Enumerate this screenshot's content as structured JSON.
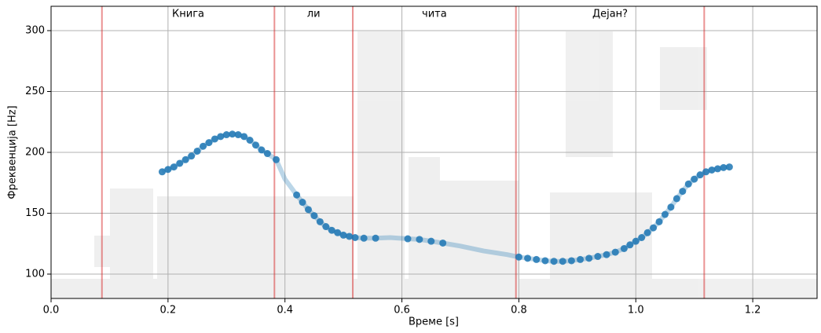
{
  "chart_data": {
    "type": "pitch",
    "xlabel": "Време [s]",
    "ylabel": "Фреквенција [Hz]",
    "xlim": [
      0,
      1.31
    ],
    "ylim": [
      80,
      320
    ],
    "xticks": [
      {
        "value": 0,
        "label": "0.0"
      },
      0.2,
      0.4,
      0.6,
      0.8,
      {
        "value": 1,
        "label": "1.0"
      },
      1.2
    ],
    "yticks": [
      100,
      150,
      200,
      250,
      300
    ],
    "grid": true,
    "boundaries": [
      0.087,
      0.382,
      0.516,
      0.795,
      1.117
    ],
    "boundary_color": "#d62728",
    "words": [
      "Книга",
      "ли",
      "чита",
      "Дејан?"
    ],
    "series": [
      {
        "color": "#1f77b4",
        "x": [
          0.19,
          0.2,
          0.21,
          0.22,
          0.23,
          0.24,
          0.25,
          0.26,
          0.27,
          0.28,
          0.29,
          0.3,
          0.31,
          0.32,
          0.33,
          0.34,
          0.35,
          0.36,
          0.37,
          0.385,
          0.4,
          0.42,
          0.43,
          0.44,
          0.45,
          0.46,
          0.47,
          0.48,
          0.49,
          0.5,
          0.51,
          0.52,
          0.535,
          0.555,
          0.58,
          0.61,
          0.63,
          0.65,
          0.67,
          0.7,
          0.74,
          0.78,
          0.8,
          0.815,
          0.83,
          0.845,
          0.86,
          0.875,
          0.89,
          0.905,
          0.92,
          0.935,
          0.95,
          0.965,
          0.98,
          0.99,
          1.0,
          1.01,
          1.02,
          1.03,
          1.04,
          1.05,
          1.06,
          1.07,
          1.08,
          1.09,
          1.1,
          1.11,
          1.12,
          1.13,
          1.14,
          1.15,
          1.16
        ],
        "values": [
          184,
          186,
          188,
          191,
          194,
          197,
          201,
          205,
          208,
          211,
          213,
          214.5,
          215,
          214.5,
          213,
          210,
          206,
          202,
          199,
          194,
          178,
          165,
          159,
          153,
          148,
          143,
          139,
          136,
          134,
          132,
          131,
          130,
          129.5,
          129.5,
          130,
          129,
          128.5,
          127,
          125.5,
          123,
          119,
          116,
          114,
          113,
          112,
          111,
          110.5,
          110.5,
          111,
          112,
          113,
          114.5,
          116,
          118,
          121,
          124,
          127,
          130,
          134,
          138,
          143,
          149,
          155,
          162,
          168,
          174,
          178,
          181.5,
          184,
          185.5,
          186.5,
          187.5,
          188
        ],
        "voiced": [
          true,
          true,
          true,
          true,
          true,
          true,
          true,
          true,
          true,
          true,
          true,
          true,
          true,
          true,
          true,
          true,
          true,
          true,
          true,
          true,
          false,
          true,
          true,
          true,
          true,
          true,
          true,
          true,
          true,
          true,
          true,
          true,
          true,
          true,
          false,
          true,
          true,
          true,
          true,
          false,
          false,
          false,
          true,
          true,
          true,
          true,
          true,
          true,
          true,
          true,
          true,
          true,
          true,
          true,
          true,
          true,
          true,
          true,
          true,
          true,
          true,
          true,
          true,
          true,
          true,
          true,
          true,
          true,
          true,
          true,
          true,
          true,
          true
        ]
      }
    ]
  }
}
